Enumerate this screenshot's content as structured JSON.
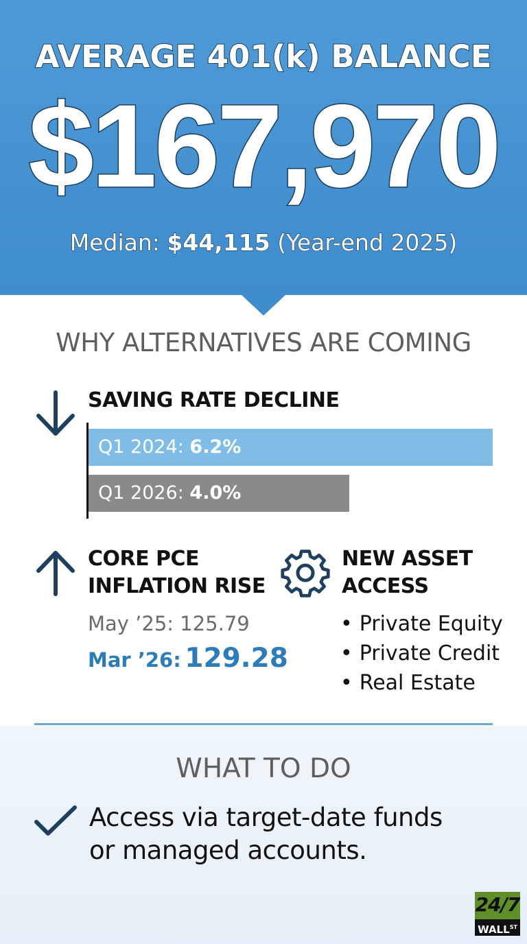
{
  "hero": {
    "title": "AVERAGE 401(k) BALANCE",
    "amount": "$167,970",
    "median_label": "Median:",
    "median_value": "$44,115",
    "median_note": "(Year-end 2025)"
  },
  "why": {
    "title": "WHY ALTERNATIVES ARE COMING",
    "saving": {
      "heading": "SAVING RATE DECLINE",
      "icon": "arrow-down-icon",
      "bars": [
        {
          "label": "Q1 2024:",
          "value": "6.2%",
          "rate": 6.2,
          "color": "#7fbde6"
        },
        {
          "label": "Q1 2026:",
          "value": "4.0%",
          "rate": 4.0,
          "color": "#8a8a8a"
        }
      ]
    },
    "pce": {
      "heading_line1": "CORE PCE",
      "heading_line2": "INFLATION RISE",
      "icon": "arrow-up-icon",
      "previous": "May ’25: 125.79",
      "current_label": "Mar ’26:",
      "current_value": "129.28"
    },
    "assets": {
      "heading_line1": "NEW ASSET",
      "heading_line2": "ACCESS",
      "icon": "gear-icon",
      "items": [
        "Private Equity",
        "Private Credit",
        "Real Estate"
      ]
    }
  },
  "todo": {
    "title": "WHAT TO DO",
    "icon": "checkmark-icon",
    "line1": "Access via target-date funds",
    "line2": "or managed accounts."
  },
  "logo": {
    "top": "24/7",
    "bottom": "WALL",
    "bottom_sup": "ST"
  },
  "colors": {
    "hero_blue": "#4f9ad6",
    "accent_blue": "#2b7cb8",
    "icon_navy": "#1f3f5e",
    "gray_bar": "#8a8a8a",
    "light_blue_bar": "#7fbde6",
    "logo_green": "#5e8f2a"
  }
}
